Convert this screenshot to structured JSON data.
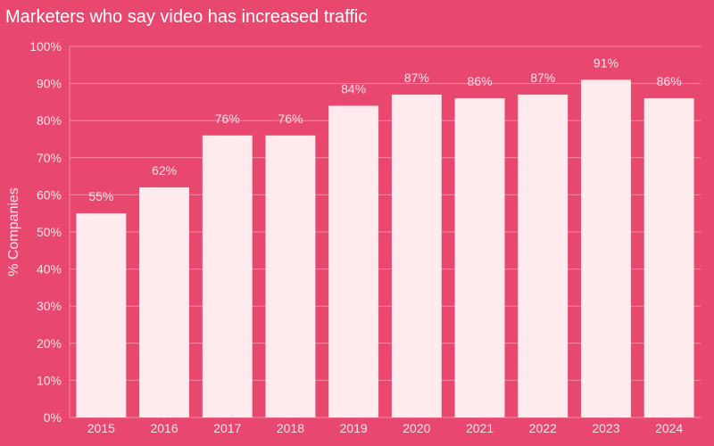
{
  "chart_data": {
    "type": "bar",
    "title": "Marketers who say video has increased traffic",
    "ylabel": "% Companies",
    "xlabel": "",
    "categories": [
      "2015",
      "2016",
      "2017",
      "2018",
      "2019",
      "2020",
      "2021",
      "2022",
      "2023",
      "2024"
    ],
    "values": [
      55,
      62,
      76,
      76,
      84,
      87,
      86,
      87,
      91,
      86
    ],
    "value_labels": [
      "55%",
      "62%",
      "76%",
      "76%",
      "84%",
      "87%",
      "86%",
      "87%",
      "91%",
      "86%"
    ],
    "ylim": [
      0,
      100
    ],
    "yticks": [
      0,
      10,
      20,
      30,
      40,
      50,
      60,
      70,
      80,
      90,
      100
    ],
    "ytick_labels": [
      "0%",
      "10%",
      "20%",
      "30%",
      "40%",
      "50%",
      "60%",
      "70%",
      "80%",
      "90%",
      "100%"
    ],
    "grid": true,
    "legend": "none"
  },
  "colors": {
    "background": "#e8476f",
    "bar": "#ffebee",
    "grid": "#f38aa3",
    "text": "#fbe4ea"
  }
}
